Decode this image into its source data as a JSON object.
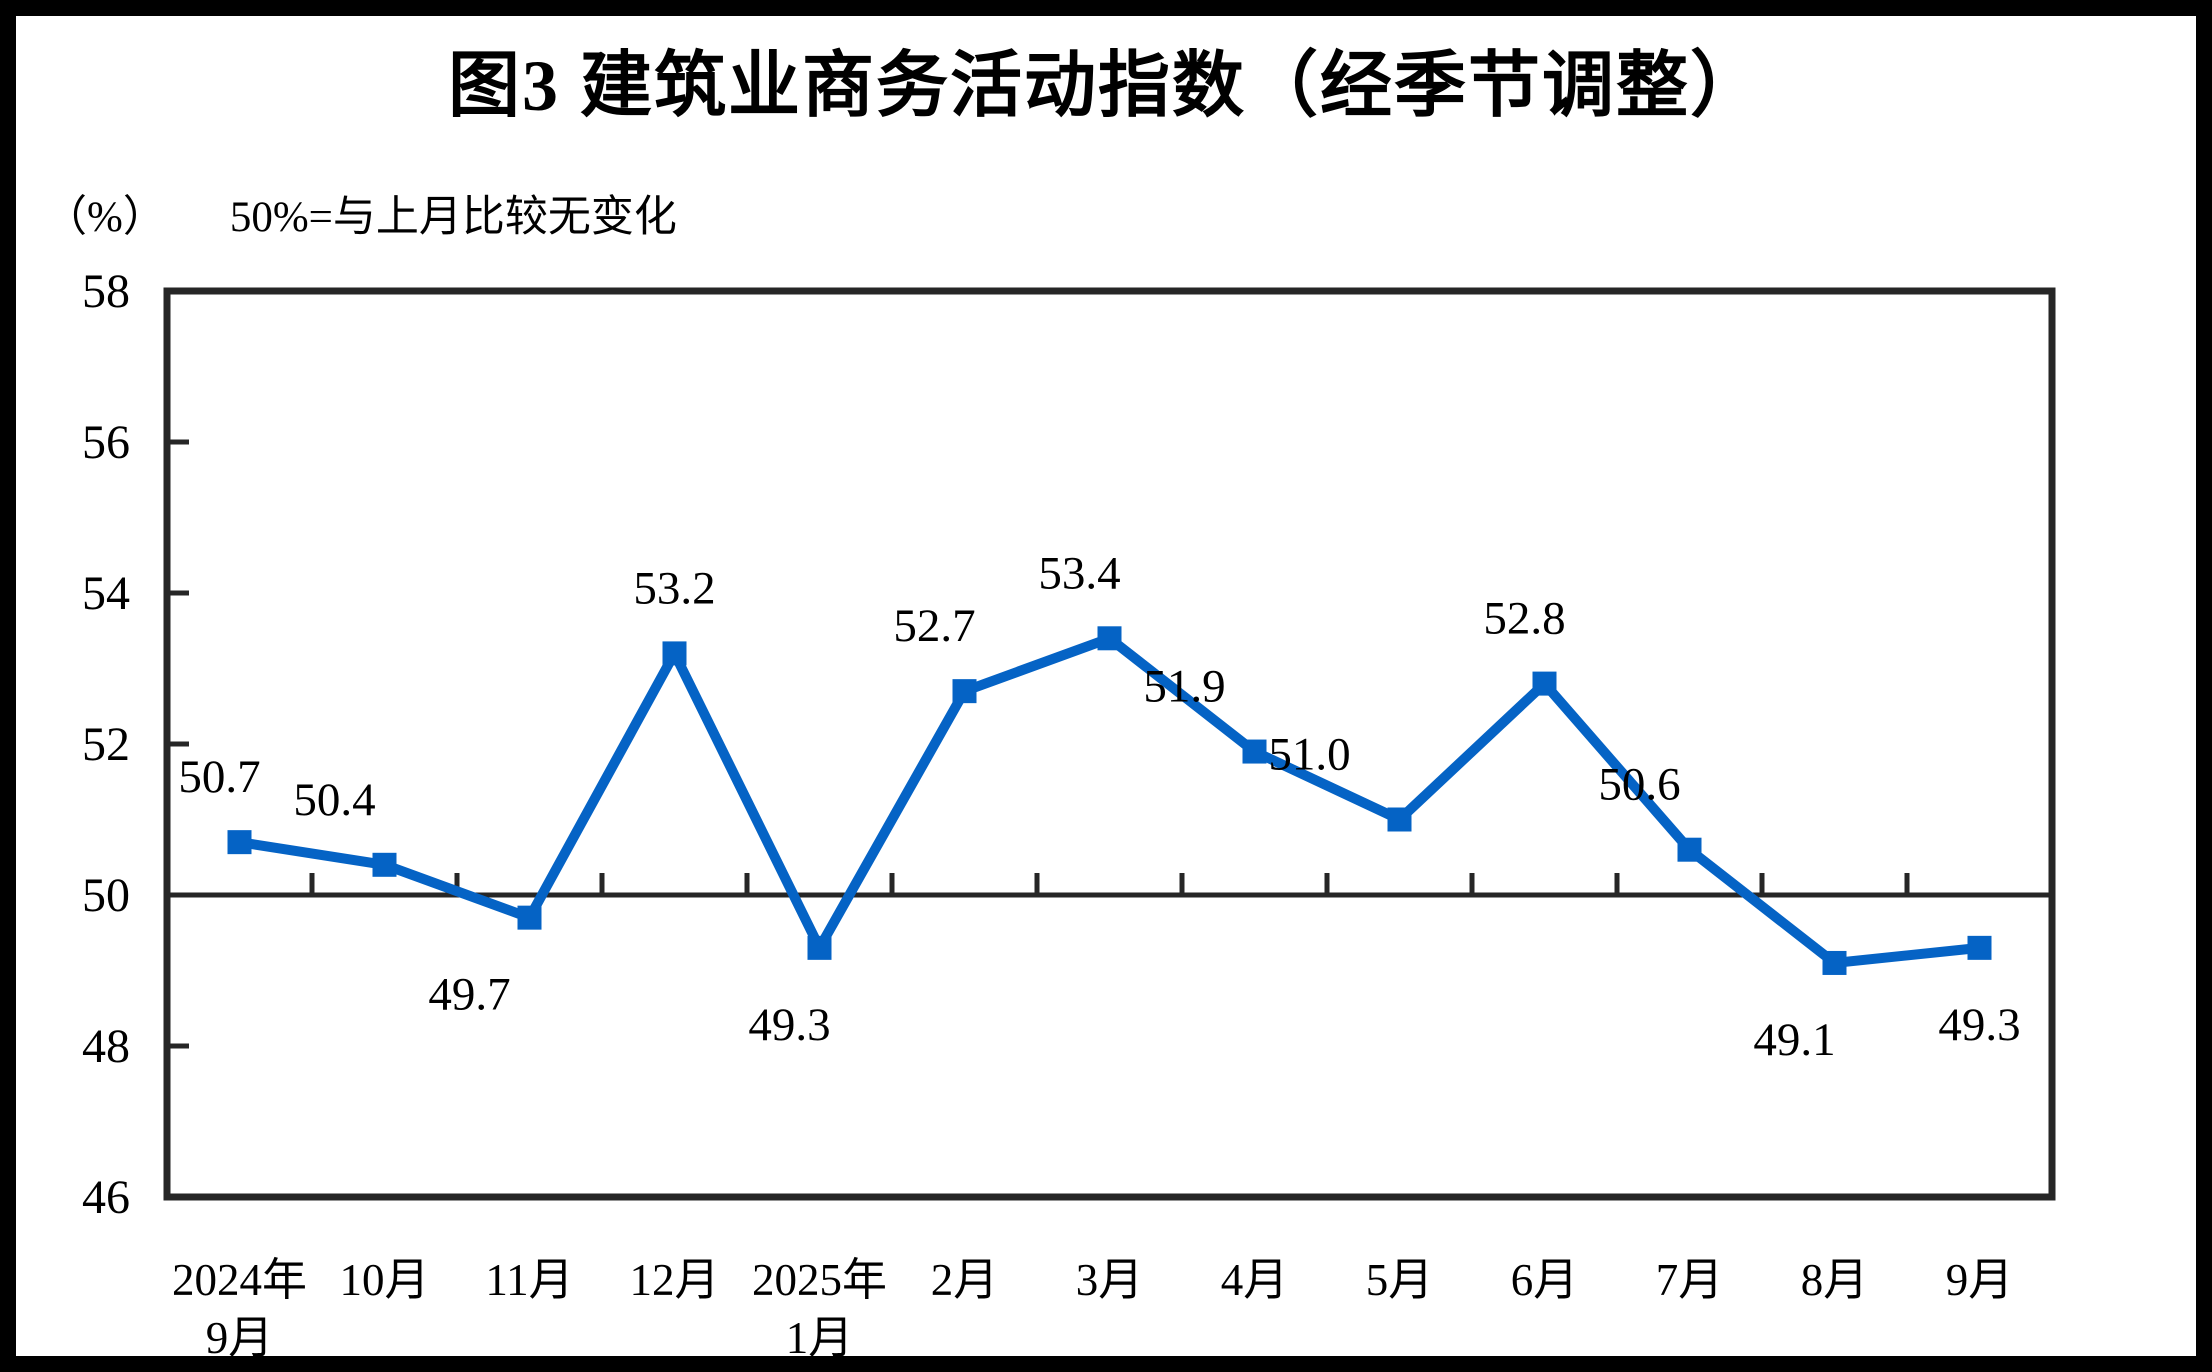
{
  "page": {
    "background": "#ffffff",
    "frame_color": "#000000"
  },
  "header": {
    "title": "图3 建筑业商务活动指数（经季节调整）"
  },
  "axis_note": {
    "unit": "（%）",
    "note": "50%=与上月比较无变化"
  },
  "chart_data": {
    "type": "line",
    "title": "图3 建筑业商务活动指数（经季节调整）",
    "unit_label": "（%）",
    "reference_note": "50%=与上月比较无变化",
    "categories": [
      "2024年9月",
      "10月",
      "11月",
      "12月",
      "2025年1月",
      "2月",
      "3月",
      "4月",
      "5月",
      "6月",
      "7月",
      "8月",
      "9月"
    ],
    "category_labels": [
      [
        "2024年",
        "9月"
      ],
      [
        "10月"
      ],
      [
        "11月"
      ],
      [
        "12月"
      ],
      [
        "2025年",
        "1月"
      ],
      [
        "2月"
      ],
      [
        "3月"
      ],
      [
        "4月"
      ],
      [
        "5月"
      ],
      [
        "6月"
      ],
      [
        "7月"
      ],
      [
        "8月"
      ],
      [
        "9月"
      ]
    ],
    "series": [
      {
        "name": "建筑业商务活动指数",
        "values": [
          50.7,
          50.4,
          49.7,
          53.2,
          49.3,
          52.7,
          53.4,
          51.9,
          51.0,
          52.8,
          50.6,
          49.1,
          49.3
        ]
      }
    ],
    "ylim": [
      46,
      58
    ],
    "y_ticks": [
      58,
      56,
      54,
      52,
      50,
      48,
      46
    ],
    "y_tick_step": 2,
    "reference_line": 50,
    "grid": "off",
    "legend": "none",
    "line_color": "#0563C5",
    "axis_color": "#262626",
    "marker": "square",
    "label_pos": [
      "above",
      "above",
      "below",
      "above",
      "below",
      "above",
      "above",
      "above",
      "above",
      "above",
      "above",
      "below",
      "below"
    ],
    "label_dx": [
      -20,
      -50,
      -60,
      0,
      -30,
      -30,
      -30,
      -70,
      -90,
      -20,
      -50,
      -40,
      0
    ]
  }
}
